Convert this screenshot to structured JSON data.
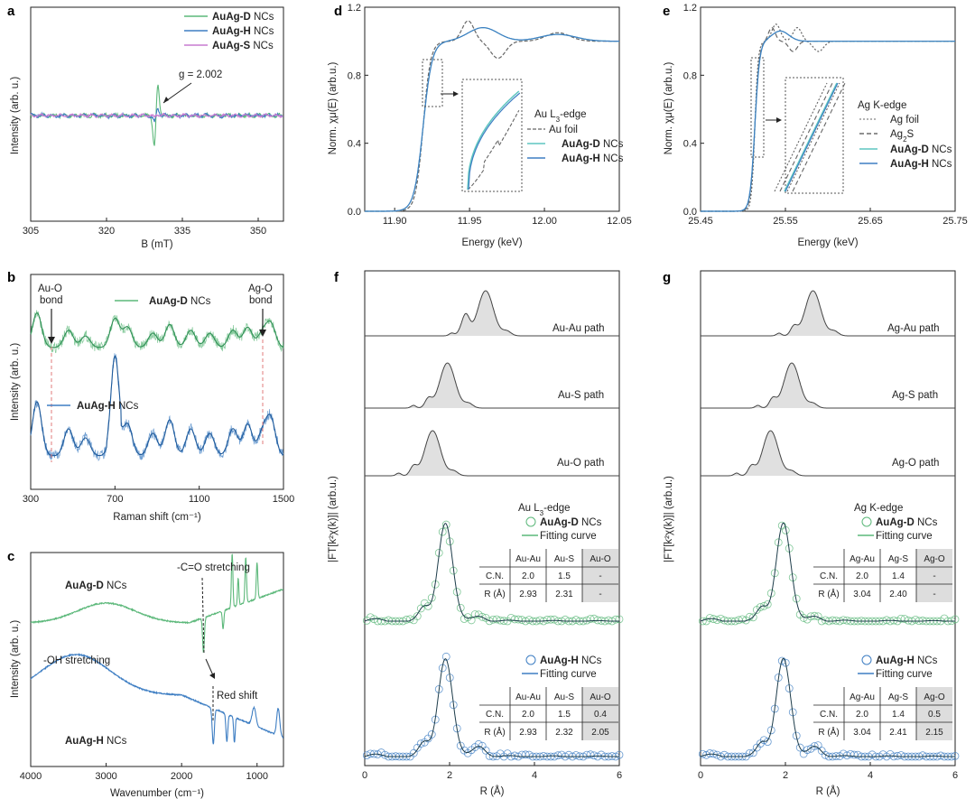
{
  "colors": {
    "green": "#5cb87a",
    "blue": "#3e7ec3",
    "purple": "#c77bd0",
    "gray": "#666666",
    "cyan": "#5fc6c0",
    "shade": "#dddddd"
  },
  "chart_data": [
    {
      "id": "a",
      "type": "line",
      "panel_label": "a",
      "xlabel": "B (mT)",
      "ylabel": "Intensity (arb. u.)",
      "xlim": [
        305,
        355
      ],
      "xticks": [
        305,
        320,
        335,
        350
      ],
      "annotations": [
        {
          "text": "g = 2.002",
          "at": [
            330,
            0.15
          ]
        }
      ],
      "series": [
        {
          "name_bold": "AuAg-D",
          "name_rest": " NCs",
          "color_key": "green",
          "center": 329.8,
          "amp": 1.0
        },
        {
          "name_bold": "AuAg-H",
          "name_rest": " NCs",
          "color_key": "blue",
          "center": 329.8,
          "amp": 0.22
        },
        {
          "name_bold": "AuAg-S",
          "name_rest": " NCs",
          "color_key": "purple",
          "center": 329.8,
          "amp": 0.05
        }
      ]
    },
    {
      "id": "b",
      "type": "line",
      "panel_label": "b",
      "xlabel": "Raman shift (cm⁻¹)",
      "ylabel": "Intensity (arb. u.)",
      "xlim": [
        300,
        1500
      ],
      "xticks": [
        300,
        700,
        1100,
        1500
      ],
      "annotations": [
        {
          "line1": "Au-O",
          "line2": "bond",
          "x": 400
        },
        {
          "line1": "Ag-O",
          "line2": "bond",
          "x": 1410
        }
      ],
      "series": [
        {
          "name_bold": "AuAg-D",
          "name_rest": " NCs",
          "color_key": "green"
        },
        {
          "name_bold": "AuAg-H",
          "name_rest": " NCs",
          "color_key": "blue"
        }
      ]
    },
    {
      "id": "c",
      "type": "line",
      "panel_label": "c",
      "xlabel": "Wavenumber (cm⁻¹)",
      "ylabel": "Intensity (arb. u.)",
      "xlim": [
        4000,
        650
      ],
      "xticks": [
        4000,
        3000,
        2000,
        1000
      ],
      "annotations": [
        {
          "text": "-C=O stretching"
        },
        {
          "text": "-OH stretching"
        },
        {
          "text": "Red shift"
        }
      ],
      "series": [
        {
          "name_bold": "AuAg-D",
          "name_rest": " NCs",
          "color_key": "green"
        },
        {
          "name_bold": "AuAg-H",
          "name_rest": " NCs",
          "color_key": "blue"
        }
      ]
    },
    {
      "id": "d",
      "type": "line",
      "panel_label": "d",
      "xlabel": "Energy (keV)",
      "ylabel": "Norm. χμ(E) (arb.u.)",
      "xlim": [
        11.88,
        12.05
      ],
      "ylim": [
        0.0,
        1.2
      ],
      "xticks": [
        "11.90",
        "11.95",
        "12.00",
        "12.05"
      ],
      "yticks": [
        "0.0",
        "0.4",
        "0.8",
        "1.2"
      ],
      "edge_title_main": "Au L",
      "edge_title_sub": "3",
      "edge_title_end": "-edge",
      "edge_energy": 11.919,
      "series": [
        {
          "name_bold": "",
          "name_rest": "Au foil",
          "color_key": "gray",
          "dash": true
        },
        {
          "name_bold": "AuAg-D",
          "name_rest": " NCs",
          "color_key": "cyan"
        },
        {
          "name_bold": "AuAg-H",
          "name_rest": " NCs",
          "color_key": "blue"
        }
      ]
    },
    {
      "id": "e",
      "type": "line",
      "panel_label": "e",
      "xlabel": "Energy (keV)",
      "ylabel": "Norm. χμ(E) (arb.u.)",
      "xlim": [
        25.45,
        25.75
      ],
      "ylim": [
        0.0,
        1.2
      ],
      "xticks": [
        "25.45",
        "25.55",
        "25.65",
        "25.75"
      ],
      "yticks": [
        "0.0",
        "0.4",
        "0.8",
        "1.2"
      ],
      "edge_title_main": "Ag K-edge",
      "edge_title_sub": "",
      "edge_title_end": "",
      "edge_energy": 25.514,
      "series": [
        {
          "name_bold": "",
          "name_rest": "Ag foil",
          "color_key": "gray",
          "dash": true
        },
        {
          "name_bold": "",
          "name_rest": "Ag",
          "name_sub": "2",
          "name_end": "S",
          "color_key": "gray",
          "dash": true
        },
        {
          "name_bold": "AuAg-D",
          "name_rest": " NCs",
          "color_key": "cyan"
        },
        {
          "name_bold": "AuAg-H",
          "name_rest": " NCs",
          "color_key": "blue"
        }
      ]
    },
    {
      "id": "f",
      "type": "line",
      "panel_label": "f",
      "xlabel": "R (Å)",
      "ylabel": "|FT[k²χ(k)]| (arb.u.)",
      "xlim": [
        0,
        6
      ],
      "xticks": [
        0,
        2,
        4,
        6
      ],
      "paths": [
        {
          "label": "Au-Au path",
          "peak_R": 2.85,
          "secondary_R": 2.35
        },
        {
          "label": "Au-S path",
          "peak_R": 1.95
        },
        {
          "label": "Au-O path",
          "peak_R": 1.6
        }
      ],
      "edge_title_main": "Au L",
      "edge_title_sub": "3",
      "edge_title_end": "-edge",
      "fits": [
        {
          "name_bold": "AuAg-D",
          "name_rest": " NCs",
          "fit_label": "Fitting curve",
          "color_key": "green",
          "peak_R": 1.9,
          "table": {
            "headers": [
              "",
              "Au-Au",
              "Au-S",
              "Au-O"
            ],
            "rows": [
              [
                "C.N.",
                "2.0",
                "1.5",
                "-"
              ],
              [
                "R (Å)",
                "2.93",
                "2.31",
                "-"
              ]
            ]
          }
        },
        {
          "name_bold": "AuAg-H",
          "name_rest": " NCs",
          "fit_label": "Fitting curve",
          "color_key": "blue",
          "peak_R": 1.9,
          "table": {
            "headers": [
              "",
              "Au-Au",
              "Au-S",
              "Au-O"
            ],
            "rows": [
              [
                "C.N.",
                "2.0",
                "1.5",
                "0.4"
              ],
              [
                "R (Å)",
                "2.93",
                "2.32",
                "2.05"
              ]
            ]
          }
        }
      ]
    },
    {
      "id": "g",
      "type": "line",
      "panel_label": "g",
      "xlabel": "R (Å)",
      "ylabel": "|FT[k²χ(k)]| (arb.u.)",
      "xlim": [
        0,
        6
      ],
      "xticks": [
        0,
        2,
        4,
        6
      ],
      "paths": [
        {
          "label": "Ag-Au path",
          "peak_R": 2.65
        },
        {
          "label": "Ag-S path",
          "peak_R": 2.15
        },
        {
          "label": "Ag-O path",
          "peak_R": 1.65
        }
      ],
      "edge_title_main": "Ag K-edge",
      "edge_title_sub": "",
      "edge_title_end": "",
      "fits": [
        {
          "name_bold": "AuAg-D",
          "name_rest": " NCs",
          "fit_label": "Fitting curve",
          "color_key": "green",
          "peak_R": 1.95,
          "table": {
            "headers": [
              "",
              "Ag-Au",
              "Ag-S",
              "Ag-O"
            ],
            "rows": [
              [
                "C.N.",
                "2.0",
                "1.4",
                "-"
              ],
              [
                "R (Å)",
                "3.04",
                "2.40",
                "-"
              ]
            ]
          }
        },
        {
          "name_bold": "AuAg-H",
          "name_rest": " NCs",
          "fit_label": "Fitting curve",
          "color_key": "blue",
          "peak_R": 1.95,
          "table": {
            "headers": [
              "",
              "Ag-Au",
              "Ag-S",
              "Ag-O"
            ],
            "rows": [
              [
                "C.N.",
                "2.0",
                "1.4",
                "0.5"
              ],
              [
                "R (Å)",
                "3.04",
                "2.41",
                "2.15"
              ]
            ]
          }
        }
      ]
    }
  ]
}
